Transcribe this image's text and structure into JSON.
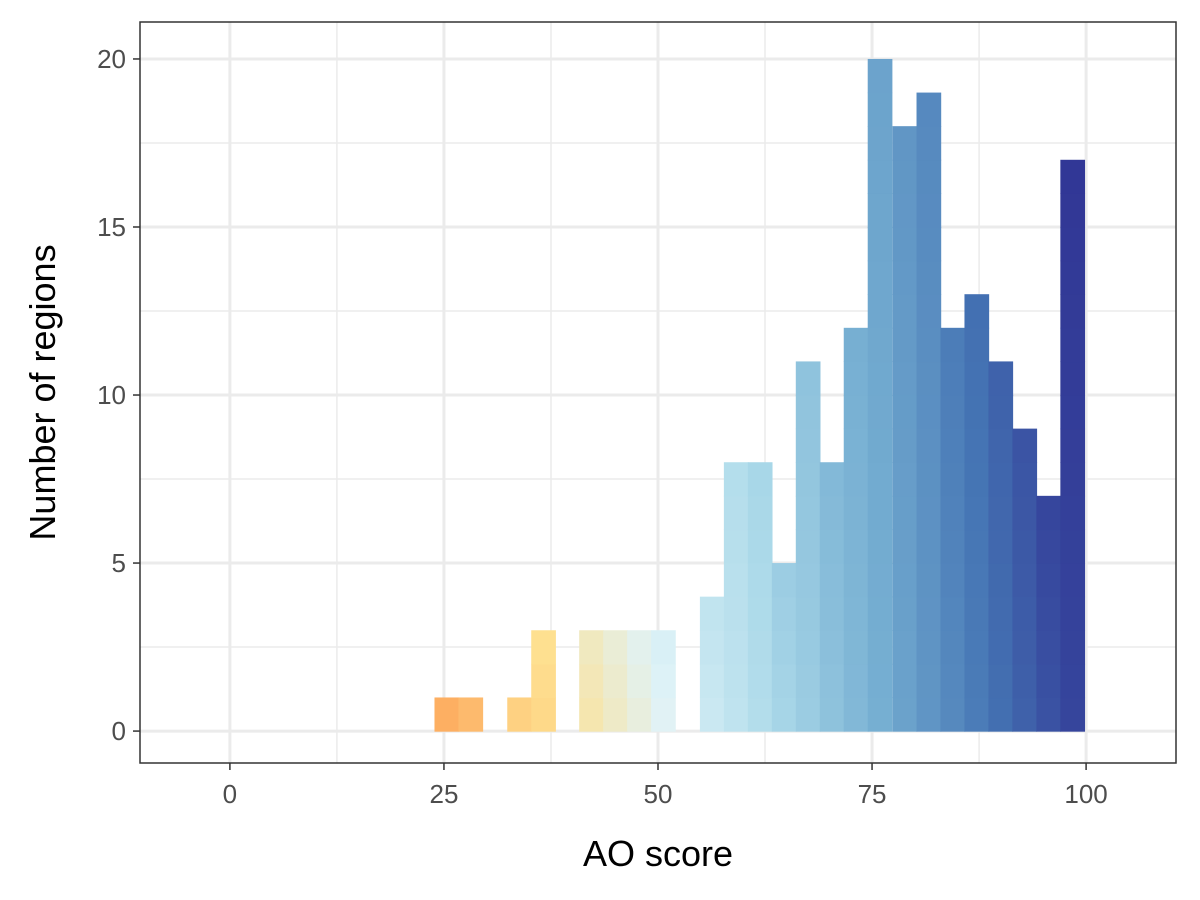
{
  "chart_data": {
    "type": "bar",
    "title": "",
    "xlabel": "AO score",
    "ylabel": "Number of regions",
    "xlim": [
      -10.5,
      110.5
    ],
    "ylim": [
      -0.95,
      21.1
    ],
    "xticks": [
      0,
      25,
      50,
      75,
      100
    ],
    "xtick_labels": [
      "0",
      "25",
      "50",
      "75",
      "100"
    ],
    "yticks": [
      0,
      5,
      10,
      15,
      20
    ],
    "ytick_labels": [
      "0",
      "5",
      "10",
      "15",
      "20"
    ],
    "grid": true,
    "legend": "none",
    "bin_width": 2.8125,
    "bins": [
      {
        "x": 25.3,
        "count": 1
      },
      {
        "x": 28.1,
        "count": 1
      },
      {
        "x": 33.8,
        "count": 1
      },
      {
        "x": 36.6,
        "count": 3
      },
      {
        "x": 42.2,
        "count": 3
      },
      {
        "x": 45.0,
        "count": 3
      },
      {
        "x": 47.8,
        "count": 3
      },
      {
        "x": 50.6,
        "count": 3
      },
      {
        "x": 56.3,
        "count": 4
      },
      {
        "x": 59.1,
        "count": 8
      },
      {
        "x": 61.9,
        "count": 8
      },
      {
        "x": 64.7,
        "count": 5
      },
      {
        "x": 67.5,
        "count": 11
      },
      {
        "x": 70.3,
        "count": 8
      },
      {
        "x": 73.1,
        "count": 12
      },
      {
        "x": 75.9,
        "count": 20
      },
      {
        "x": 78.8,
        "count": 18
      },
      {
        "x": 81.6,
        "count": 19
      },
      {
        "x": 84.4,
        "count": 12
      },
      {
        "x": 87.2,
        "count": 13
      },
      {
        "x": 90.0,
        "count": 11
      },
      {
        "x": 92.8,
        "count": 9
      },
      {
        "x": 95.6,
        "count": 7
      },
      {
        "x": 98.4,
        "count": 17
      }
    ],
    "color_scale": {
      "type": "diverging",
      "colors": [
        "#d73027",
        "#f46d43",
        "#fdae61",
        "#fee090",
        "#e0f3f8",
        "#abd9e9",
        "#74add1",
        "#4575b4",
        "#313695"
      ],
      "domain": [
        0,
        100
      ]
    }
  }
}
